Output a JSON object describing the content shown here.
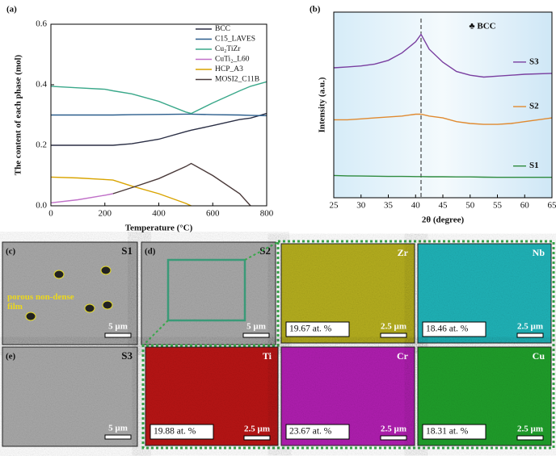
{
  "chart_data": [
    {
      "type": "line",
      "panel": "(a)",
      "xlabel": "Temperature (°C)",
      "ylabel": "The content of each phase (mol)",
      "x": [
        0,
        100,
        200,
        230,
        300,
        400,
        500,
        520,
        600,
        700,
        740,
        800
      ],
      "xlim": [
        0,
        800
      ],
      "xticks": [
        0,
        200,
        400,
        600,
        800
      ],
      "ylim": [
        0,
        0.6
      ],
      "yticks": [
        {
          "value": 0,
          "label": "0.0"
        },
        0.2,
        0.4,
        0.6
      ],
      "legend": "upper right",
      "series": [
        {
          "name": "BCC",
          "color": "#2b2f45",
          "values": [
            0.2,
            0.2,
            0.2,
            0.2,
            0.205,
            0.22,
            0.245,
            0.25,
            0.265,
            0.285,
            0.29,
            0.305
          ]
        },
        {
          "name": "C15_LAVES",
          "color": "#2a5d8c",
          "values": [
            0.3,
            0.3,
            0.3,
            0.3,
            0.301,
            0.302,
            0.303,
            0.303,
            0.301,
            0.3,
            0.299,
            0.298
          ]
        },
        {
          "name": "Cu₂TiZr",
          "color": "#3aa88a",
          "values": [
            0.395,
            0.39,
            0.385,
            0.38,
            0.37,
            0.345,
            0.31,
            0.305,
            0.34,
            0.38,
            0.395,
            0.41
          ]
        },
        {
          "name": "CuTi₂_L60",
          "color": "#c070c8",
          "values": [
            0.01,
            0.02,
            0.035,
            0.04,
            null,
            null,
            null,
            null,
            null,
            null,
            null,
            null
          ]
        },
        {
          "name": "HCP_A3",
          "color": "#d9a400",
          "values": [
            0.095,
            0.092,
            0.087,
            0.085,
            0.065,
            0.04,
            0.008,
            0,
            null,
            null,
            null,
            null
          ]
        },
        {
          "name": "MOSI2_C11B",
          "color": "#4a3a3a",
          "values": [
            null,
            null,
            null,
            0.04,
            0.06,
            0.09,
            0.13,
            0.14,
            0.1,
            0.04,
            0,
            null
          ]
        }
      ]
    },
    {
      "type": "line",
      "panel": "(b)",
      "xlabel": "2θ (degree)",
      "ylabel": "Intensity (a.u.)",
      "x": [
        25,
        27.5,
        30,
        32.5,
        35,
        37.5,
        40,
        41,
        42.5,
        45,
        47.5,
        50,
        52.5,
        55,
        57.5,
        60,
        65
      ],
      "xlim": [
        25,
        65
      ],
      "xticks": [
        25,
        30,
        35,
        40,
        45,
        50,
        55,
        60,
        65
      ],
      "ylim": [
        0,
        100
      ],
      "annotation": "♣ BCC",
      "reference_line_x": 41,
      "series": [
        {
          "name": "S3",
          "color": "#7a3fa0",
          "values": [
            70,
            70.5,
            71,
            72,
            74,
            78,
            84,
            88,
            80,
            73,
            68,
            66,
            65,
            65.5,
            66,
            66.5,
            67
          ]
        },
        {
          "name": "S2",
          "color": "#e08a30",
          "values": [
            42,
            42,
            42.5,
            43,
            43.5,
            44,
            45,
            45,
            44,
            43,
            41,
            40,
            39.5,
            39.5,
            40,
            41,
            43
          ]
        },
        {
          "name": "S1",
          "color": "#2e8b3e",
          "values": [
            12,
            11.8,
            11.7,
            11.6,
            11.5,
            11.5,
            11.4,
            11.4,
            11.3,
            11.3,
            11.2,
            11.2,
            11.1,
            11,
            11,
            11,
            11
          ]
        }
      ]
    }
  ],
  "micrographs": [
    {
      "panel": "(c)",
      "sample": "S1",
      "scale": "5 µm",
      "annotation": "porous non-dense film"
    },
    {
      "panel": "(d)",
      "sample": "S2",
      "scale": "5 µm"
    },
    {
      "panel": "(e)",
      "sample": "S3",
      "scale": "5 µm"
    }
  ],
  "element_maps": [
    {
      "element": "Zr",
      "content": "19.67 at. %",
      "scale": "2.5 µm",
      "color": "#b5ae1e"
    },
    {
      "element": "Nb",
      "content": "18.46 at. %",
      "scale": "2.5 µm",
      "color": "#1fb3b8"
    },
    {
      "element": "Ti",
      "content": "19.88 at. %",
      "scale": "2.5 µm",
      "color": "#b81414"
    },
    {
      "element": "Cr",
      "content": "23.67 at. %",
      "scale": "2.5 µm",
      "color": "#b01eb0"
    },
    {
      "element": "Cu",
      "content": "18.31 at. %",
      "scale": "2.5 µm",
      "color": "#1f9e2a"
    }
  ]
}
